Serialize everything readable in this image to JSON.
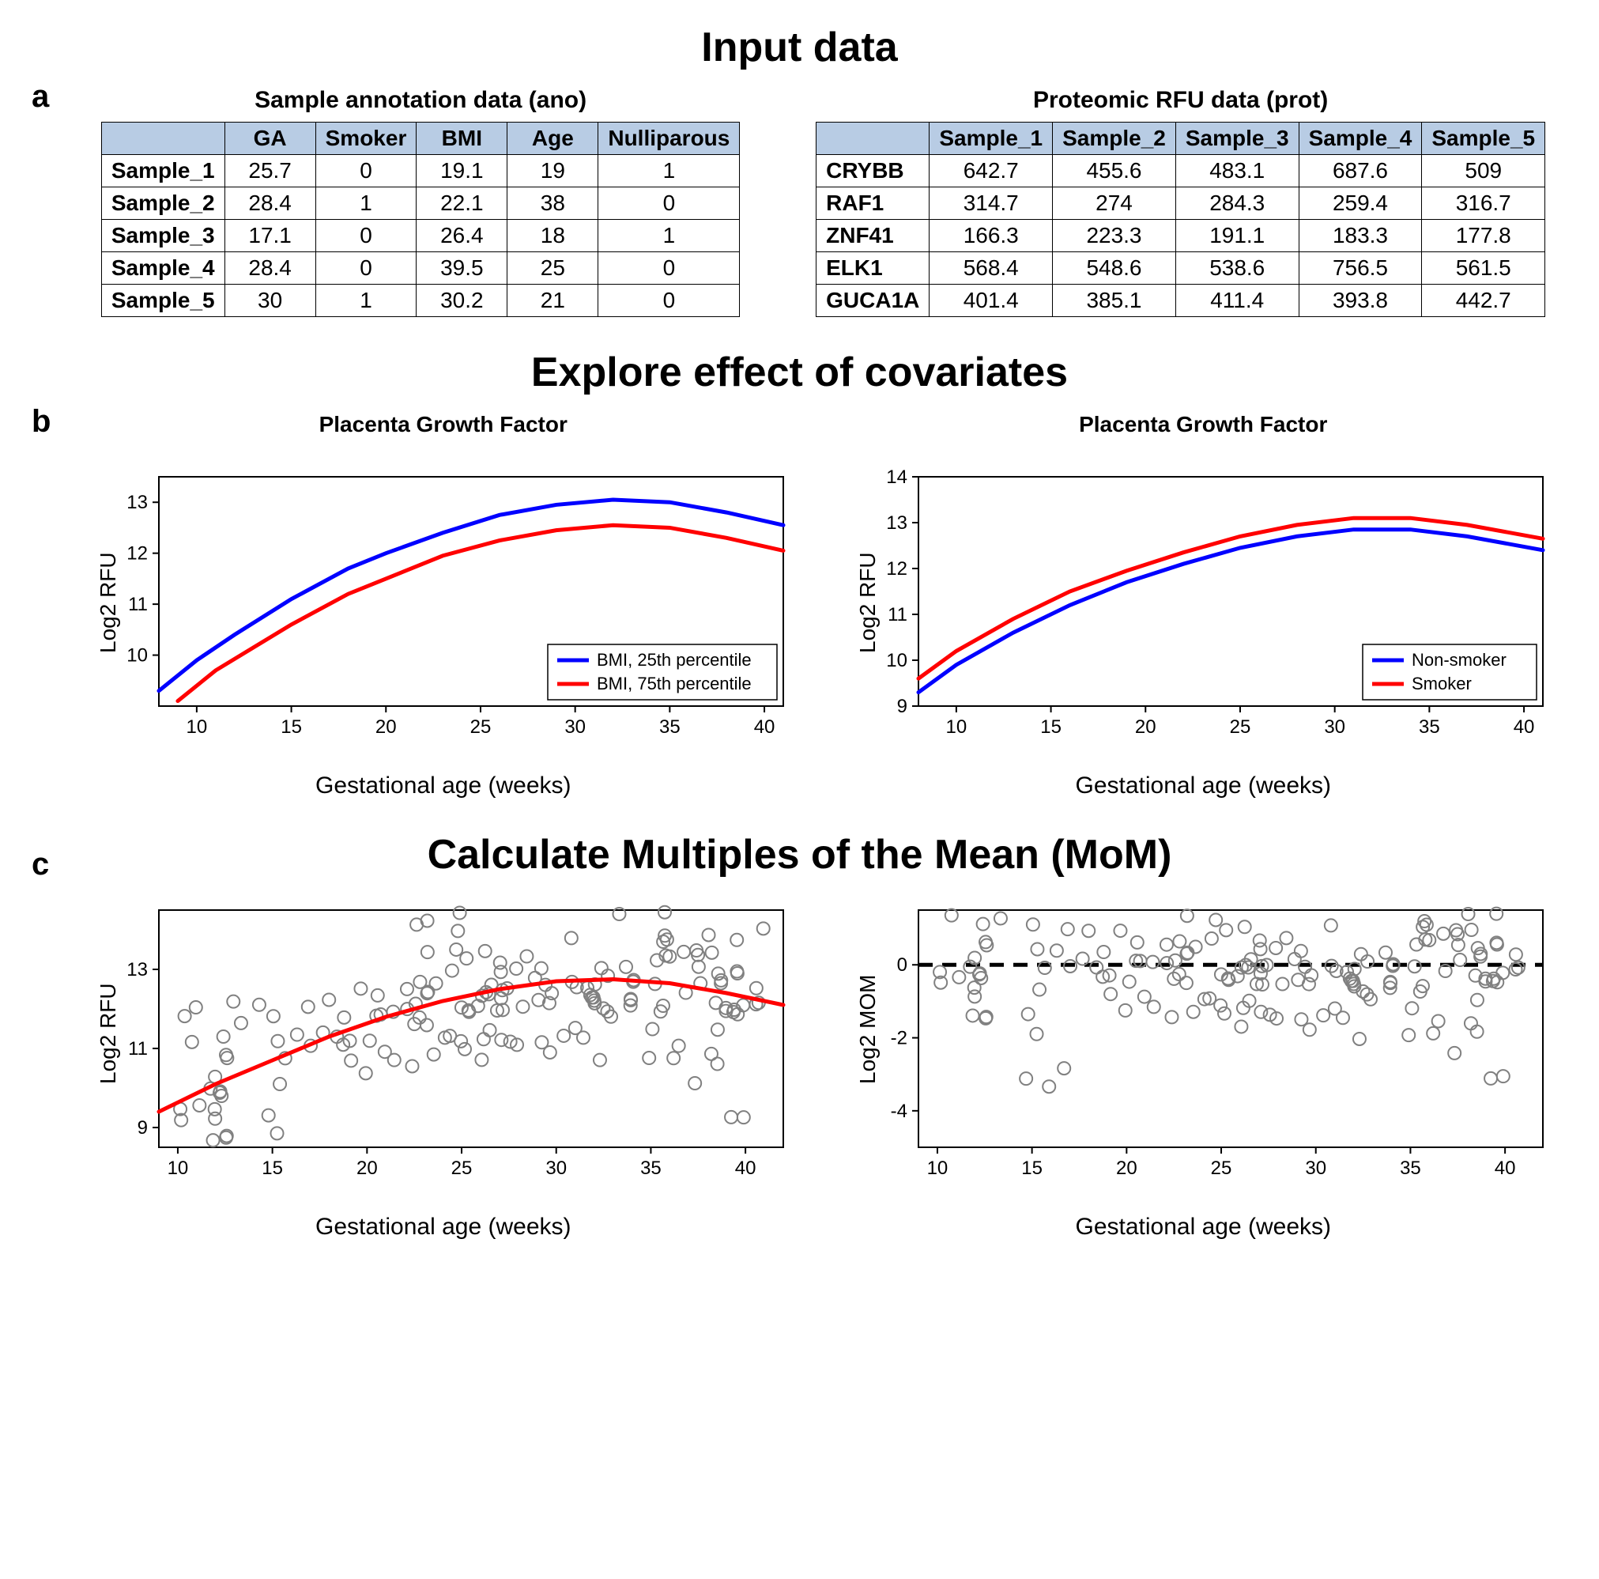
{
  "sections": {
    "a_title": "Input data",
    "b_title": "Explore effect of covariates",
    "c_title": "Calculate Multiples of the Mean (MoM)"
  },
  "labels": {
    "a": "a",
    "b": "b",
    "c": "c"
  },
  "table_ano": {
    "caption": "Sample annotation data (ano)",
    "header_bg": "#b8cce4",
    "columns": [
      "GA",
      "Smoker",
      "BMI",
      "Age",
      "Nulliparous"
    ],
    "row_headers": [
      "Sample_1",
      "Sample_2",
      "Sample_3",
      "Sample_4",
      "Sample_5"
    ],
    "rows": [
      [
        "25.7",
        "0",
        "19.1",
        "19",
        "1"
      ],
      [
        "28.4",
        "1",
        "22.1",
        "38",
        "0"
      ],
      [
        "17.1",
        "0",
        "26.4",
        "18",
        "1"
      ],
      [
        "28.4",
        "0",
        "39.5",
        "25",
        "0"
      ],
      [
        "30",
        "1",
        "30.2",
        "21",
        "0"
      ]
    ]
  },
  "table_prot": {
    "caption": "Proteomic RFU data (prot)",
    "header_bg": "#b8cce4",
    "columns": [
      "Sample_1",
      "Sample_2",
      "Sample_3",
      "Sample_4",
      "Sample_5"
    ],
    "row_headers": [
      "CRYBB",
      "RAF1",
      "ZNF41",
      "ELK1",
      "GUCA1A"
    ],
    "rows": [
      [
        "642.7",
        "455.6",
        "483.1",
        "687.6",
        "509"
      ],
      [
        "314.7",
        "274",
        "284.3",
        "259.4",
        "316.7"
      ],
      [
        "166.3",
        "223.3",
        "191.1",
        "183.3",
        "177.8"
      ],
      [
        "568.4",
        "548.6",
        "538.6",
        "756.5",
        "561.5"
      ],
      [
        "401.4",
        "385.1",
        "411.4",
        "393.8",
        "442.7"
      ]
    ]
  },
  "chart_b1": {
    "type": "line",
    "title": "Placenta Growth Factor",
    "xlabel": "Gestational age (weeks)",
    "ylabel": "Log2 RFU",
    "xlim": [
      8,
      41
    ],
    "ylim": [
      9,
      13.5
    ],
    "xticks": [
      10,
      15,
      20,
      25,
      30,
      35,
      40
    ],
    "yticks": [
      10,
      11,
      12,
      13
    ],
    "line_width": 5,
    "series": [
      {
        "label": "BMI, 25th percentile",
        "color": "#0000ff",
        "x": [
          8,
          10,
          12,
          15,
          18,
          20,
          23,
          26,
          29,
          32,
          35,
          38,
          41
        ],
        "y": [
          9.3,
          9.9,
          10.4,
          11.1,
          11.7,
          12.0,
          12.4,
          12.75,
          12.95,
          13.05,
          13.0,
          12.8,
          12.55
        ]
      },
      {
        "label": "BMI, 75th percentile",
        "color": "#ff0000",
        "x": [
          9,
          11,
          13,
          15,
          18,
          20,
          23,
          26,
          29,
          32,
          35,
          38,
          41
        ],
        "y": [
          9.1,
          9.7,
          10.15,
          10.6,
          11.2,
          11.5,
          11.95,
          12.25,
          12.45,
          12.55,
          12.5,
          12.3,
          12.05
        ]
      }
    ],
    "legend_pos": "bottom-right",
    "background": "#ffffff",
    "border_color": "#000000"
  },
  "chart_b2": {
    "type": "line",
    "title": "Placenta Growth Factor",
    "xlabel": "Gestational age (weeks)",
    "ylabel": "Log2 RFU",
    "xlim": [
      8,
      41
    ],
    "ylim": [
      9,
      14
    ],
    "xticks": [
      10,
      15,
      20,
      25,
      30,
      35,
      40
    ],
    "yticks": [
      9,
      10,
      11,
      12,
      13,
      14
    ],
    "line_width": 5,
    "series": [
      {
        "label": "Non-smoker",
        "color": "#0000ff",
        "x": [
          8,
          10,
          13,
          16,
          19,
          22,
          25,
          28,
          31,
          34,
          37,
          41
        ],
        "y": [
          9.3,
          9.9,
          10.6,
          11.2,
          11.7,
          12.1,
          12.45,
          12.7,
          12.85,
          12.85,
          12.7,
          12.4
        ]
      },
      {
        "label": "Smoker",
        "color": "#ff0000",
        "x": [
          8,
          10,
          13,
          16,
          19,
          22,
          25,
          28,
          31,
          34,
          37,
          41
        ],
        "y": [
          9.6,
          10.2,
          10.9,
          11.5,
          11.95,
          12.35,
          12.7,
          12.95,
          13.1,
          13.1,
          12.95,
          12.65
        ]
      }
    ],
    "legend_pos": "bottom-right",
    "background": "#ffffff",
    "border_color": "#000000"
  },
  "chart_c1": {
    "type": "scatter-line",
    "xlabel": "Gestational age (weeks)",
    "ylabel": "Log2 RFU",
    "xlim": [
      9,
      42
    ],
    "ylim": [
      8.5,
      14.5
    ],
    "xticks": [
      10,
      15,
      20,
      25,
      30,
      35,
      40
    ],
    "yticks": [
      9,
      11,
      13
    ],
    "marker_color": "#808080",
    "marker_stroke_width": 2,
    "marker_radius": 8,
    "fit_color": "#ff0000",
    "fit_width": 5,
    "fit": {
      "x": [
        9,
        12,
        15,
        18,
        21,
        24,
        27,
        30,
        33,
        36,
        39,
        42
      ],
      "y": [
        9.4,
        10.1,
        10.7,
        11.3,
        11.8,
        12.2,
        12.5,
        12.7,
        12.75,
        12.65,
        12.4,
        12.1
      ]
    },
    "n_points": 180,
    "seed": 7,
    "noise_sd": 0.9,
    "background": "#ffffff",
    "border_color": "#000000"
  },
  "chart_c2": {
    "type": "scatter-hline",
    "xlabel": "Gestational age (weeks)",
    "ylabel": "Log2 MOM",
    "xlim": [
      9,
      42
    ],
    "ylim": [
      -5,
      1.5
    ],
    "xticks": [
      10,
      15,
      20,
      25,
      30,
      35,
      40
    ],
    "yticks": [
      -4,
      -2,
      0
    ],
    "marker_color": "#808080",
    "marker_stroke_width": 2,
    "marker_radius": 8,
    "hline_y": 0,
    "hline_color": "#000000",
    "hline_width": 5,
    "hline_dash": "18,12",
    "n_points": 180,
    "seed": 7,
    "noise_sd": 0.9,
    "background": "#ffffff",
    "border_color": "#000000"
  }
}
